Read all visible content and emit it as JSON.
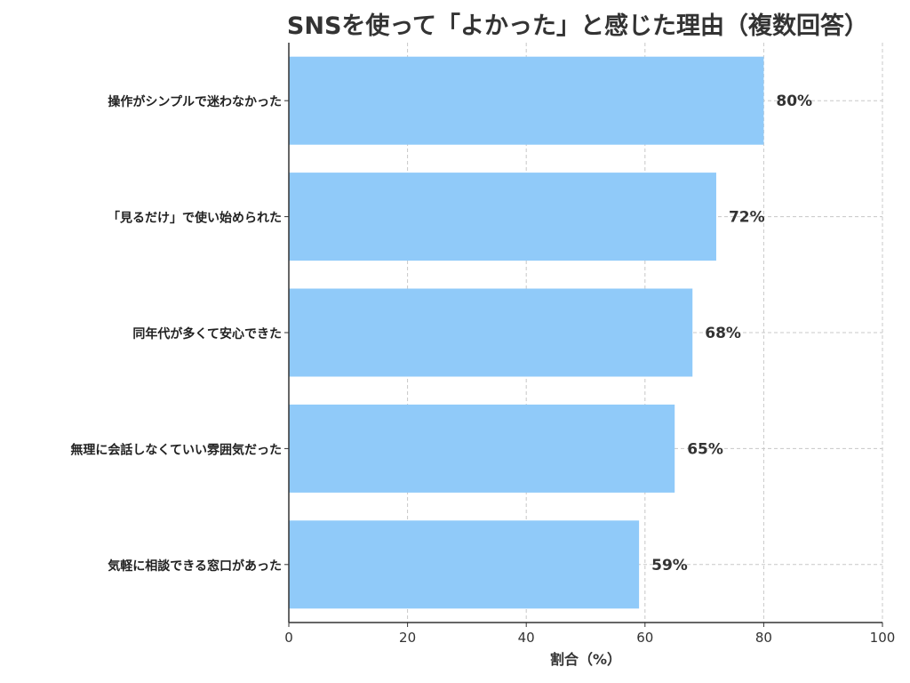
{
  "chart_data": {
    "type": "bar",
    "orientation": "horizontal",
    "title": "SNSを使って「よかった」と感じた理由（複数回答）",
    "xlabel": "割合（%）",
    "ylabel": "",
    "xlim": [
      0,
      100
    ],
    "x_ticks": [
      0,
      20,
      40,
      60,
      80,
      100
    ],
    "grid": true,
    "categories": [
      "操作がシンプルで迷わなかった",
      "「見るだけ」で使い始められた",
      "同年代が多くて安心できた",
      "無理に会話しなくていい雰囲気だった",
      "気軽に相談できる窓口があった"
    ],
    "values": [
      80,
      72,
      68,
      65,
      59
    ],
    "value_labels": [
      "80%",
      "72%",
      "68%",
      "65%",
      "59%"
    ],
    "bar_color": "#90caf9",
    "axis_color": "#333333",
    "grid_color": "#c8c8c8"
  }
}
